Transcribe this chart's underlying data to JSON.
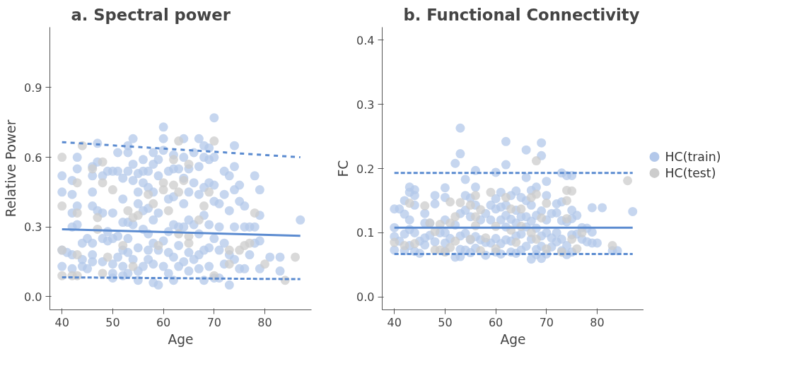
{
  "chart_data": [
    {
      "type": "scatter",
      "title": "a.  Spectral power",
      "xlabel": "Age",
      "ylabel": "Relative Power",
      "xlim": [
        37.6,
        89.2
      ],
      "ylim": [
        -0.057,
        1.16
      ],
      "xticks": [
        40,
        50,
        60,
        70,
        80
      ],
      "yticks": [
        {
          "value": 0,
          "label": "0.0"
        },
        0.3,
        0.6,
        0.9
      ],
      "grid": false,
      "legend": false,
      "marker": "circle",
      "series": [
        {
          "color": "#b3c8ea",
          "x": [
            40,
            40,
            40,
            40,
            41,
            42,
            42,
            42,
            42,
            42,
            42,
            43,
            43,
            43,
            43,
            44,
            44,
            44,
            45,
            45,
            46,
            46,
            46,
            46,
            46,
            46,
            46,
            47,
            47,
            47,
            48,
            48,
            48,
            48,
            49,
            49,
            49,
            50,
            50,
            50,
            50,
            50,
            50,
            51,
            51,
            51,
            51,
            52,
            52,
            52,
            52,
            52,
            52,
            53,
            53,
            53,
            53,
            53,
            53,
            53,
            54,
            54,
            54,
            54,
            54,
            55,
            55,
            55,
            55,
            55,
            55,
            56,
            56,
            56,
            56,
            56,
            56,
            57,
            57,
            57,
            57,
            57,
            57,
            58,
            58,
            58,
            58,
            58,
            58,
            58,
            59,
            59,
            59,
            59,
            59,
            60,
            60,
            60,
            60,
            60,
            61,
            61,
            61,
            61,
            61,
            62,
            62,
            62,
            62,
            62,
            62,
            63,
            63,
            63,
            63,
            64,
            64,
            64,
            64,
            64,
            64,
            65,
            65,
            65,
            65,
            65,
            66,
            66,
            66,
            66,
            67,
            67,
            67,
            67,
            67,
            67,
            68,
            68,
            68,
            68,
            68,
            68,
            69,
            69,
            69,
            69,
            69,
            69,
            70,
            70,
            70,
            70,
            70,
            70,
            71,
            71,
            71,
            71,
            72,
            72,
            72,
            72,
            73,
            73,
            73,
            73,
            74,
            74,
            74,
            74,
            74,
            75,
            75,
            75,
            76,
            76,
            76,
            77,
            77,
            78,
            78,
            78,
            79,
            79,
            79,
            79,
            81,
            83,
            83,
            87
          ],
          "values": [
            0.52,
            0.45,
            0.2,
            0.13,
            0.19,
            0.5,
            0.44,
            0.3,
            0.36,
            0.18,
            0.12,
            0.6,
            0.55,
            0.39,
            0.31,
            0.23,
            0.13,
            0.16,
            0.25,
            0.12,
            0.56,
            0.52,
            0.45,
            0.39,
            0.23,
            0.15,
            0.18,
            0.66,
            0.58,
            0.37,
            0.52,
            0.36,
            0.25,
            0.15,
            0.54,
            0.24,
            0.28,
            0.54,
            0.36,
            0.25,
            0.14,
            0.1,
            0.08,
            0.62,
            0.54,
            0.26,
            0.17,
            0.51,
            0.42,
            0.32,
            0.2,
            0.13,
            0.09,
            0.65,
            0.62,
            0.54,
            0.32,
            0.25,
            0.19,
            0.1,
            0.68,
            0.57,
            0.5,
            0.31,
            0.16,
            0.53,
            0.45,
            0.4,
            0.21,
            0.11,
            0.07,
            0.59,
            0.54,
            0.49,
            0.37,
            0.29,
            0.13,
            0.54,
            0.47,
            0.38,
            0.27,
            0.2,
            0.16,
            0.62,
            0.57,
            0.45,
            0.33,
            0.23,
            0.14,
            0.06,
            0.59,
            0.52,
            0.36,
            0.2,
            0.05,
            0.73,
            0.68,
            0.63,
            0.24,
            0.13,
            0.54,
            0.42,
            0.28,
            0.19,
            0.1,
            0.61,
            0.55,
            0.43,
            0.31,
            0.17,
            0.07,
            0.55,
            0.3,
            0.22,
            0.13,
            0.68,
            0.6,
            0.51,
            0.4,
            0.3,
            0.15,
            0.55,
            0.45,
            0.33,
            0.19,
            0.11,
            0.62,
            0.49,
            0.31,
            0.16,
            0.68,
            0.56,
            0.44,
            0.27,
            0.18,
            0.12,
            0.65,
            0.6,
            0.47,
            0.35,
            0.2,
            0.07,
            0.64,
            0.59,
            0.49,
            0.31,
            0.21,
            0.13,
            0.77,
            0.6,
            0.48,
            0.41,
            0.25,
            0.08,
            0.4,
            0.3,
            0.2,
            0.08,
            0.54,
            0.44,
            0.23,
            0.14,
            0.52,
            0.37,
            0.18,
            0.05,
            0.65,
            0.56,
            0.46,
            0.3,
            0.16,
            0.48,
            0.41,
            0.12,
            0.39,
            0.3,
            0.12,
            0.3,
            0.18,
            0.52,
            0.3,
            0.23,
            0.46,
            0.35,
            0.24,
            0.12,
            0.17,
            0.17,
            0.11,
            0.33
          ]
        },
        {
          "color": "#cccccc",
          "x": [
            40,
            40,
            40,
            40,
            42,
            43,
            43,
            43,
            43,
            44,
            46,
            47,
            47,
            48,
            48,
            48,
            49,
            50,
            52,
            53,
            54,
            54,
            55,
            57,
            58,
            59,
            60,
            60,
            61,
            62,
            62,
            63,
            63,
            63,
            64,
            65,
            65,
            65,
            67,
            68,
            69,
            70,
            70,
            73,
            73,
            75,
            76,
            77,
            78,
            80,
            84,
            86
          ],
          "values": [
            0.6,
            0.39,
            0.2,
            0.09,
            0.09,
            0.49,
            0.36,
            0.18,
            0.09,
            0.65,
            0.55,
            0.34,
            0.29,
            0.58,
            0.49,
            0.1,
            0.17,
            0.46,
            0.22,
            0.37,
            0.34,
            0.13,
            0.35,
            0.44,
            0.4,
            0.22,
            0.49,
            0.46,
            0.37,
            0.59,
            0.48,
            0.67,
            0.45,
            0.27,
            0.5,
            0.57,
            0.26,
            0.23,
            0.33,
            0.39,
            0.45,
            0.67,
            0.09,
            0.2,
            0.14,
            0.2,
            0.22,
            0.23,
            0.36,
            0.14,
            0.07,
            0.17
          ]
        },
        {
          "type": "line",
          "color": "#5b8bd0",
          "line_style": "solid",
          "marker": "none",
          "x": [
            40,
            87
          ],
          "values": [
            0.29,
            0.262
          ]
        },
        {
          "type": "line",
          "color": "#5b8bd0",
          "line_style": "dashed",
          "marker": "none",
          "x": [
            40,
            87
          ],
          "values": [
            0.665,
            0.6
          ]
        },
        {
          "type": "line",
          "color": "#5b8bd0",
          "line_style": "dashed",
          "marker": "none",
          "x": [
            40,
            87
          ],
          "values": [
            0.083,
            0.075
          ]
        }
      ]
    },
    {
      "type": "scatter",
      "title": "b.  Functional Connectivity",
      "xlabel": "Age",
      "ylabel": "FC",
      "xlim": [
        37.6,
        89.2
      ],
      "ylim": [
        -0.02,
        0.42
      ],
      "xticks": [
        40,
        50,
        60,
        70,
        80
      ],
      "yticks": [
        {
          "value": 0,
          "label": "0.0"
        },
        0.1,
        0.2,
        0.3,
        0.4
      ],
      "grid": false,
      "legend": "right",
      "marker": "circle",
      "series": [
        {
          "name": "HC(train)",
          "color": "#b3c8ea",
          "x": [
            40,
            40,
            40,
            40,
            41,
            41,
            42,
            42,
            42,
            42,
            43,
            43,
            43,
            43,
            43,
            44,
            44,
            44,
            44,
            44,
            45,
            45,
            46,
            46,
            46,
            46,
            47,
            47,
            48,
            48,
            48,
            49,
            50,
            50,
            50,
            50,
            50,
            50,
            51,
            52,
            52,
            52,
            53,
            53,
            53,
            53,
            53,
            53,
            54,
            54,
            54,
            54,
            54,
            55,
            55,
            55,
            55,
            56,
            56,
            56,
            56,
            56,
            57,
            57,
            58,
            58,
            58,
            59,
            59,
            59,
            60,
            60,
            60,
            60,
            60,
            61,
            61,
            61,
            61,
            61,
            62,
            62,
            62,
            62,
            62,
            62,
            63,
            63,
            63,
            63,
            64,
            64,
            64,
            64,
            64,
            65,
            65,
            65,
            65,
            66,
            66,
            66,
            66,
            66,
            66,
            67,
            67,
            67,
            67,
            67,
            68,
            68,
            68,
            68,
            68,
            69,
            69,
            69,
            69,
            69,
            69,
            70,
            70,
            70,
            70,
            70,
            71,
            71,
            71,
            72,
            72,
            72,
            72,
            73,
            73,
            73,
            73,
            73,
            74,
            74,
            74,
            74,
            75,
            75,
            75,
            75,
            75,
            76,
            76,
            77,
            77,
            78,
            78,
            79,
            79,
            79,
            80,
            81,
            83,
            84,
            87
          ],
          "values": [
            0.137,
            0.108,
            0.094,
            0.073,
            0.137,
            0.087,
            0.15,
            0.129,
            0.098,
            0.072,
            0.171,
            0.163,
            0.12,
            0.105,
            0.08,
            0.167,
            0.158,
            0.143,
            0.1,
            0.071,
            0.087,
            0.068,
            0.13,
            0.115,
            0.092,
            0.081,
            0.115,
            0.096,
            0.158,
            0.145,
            0.086,
            0.1,
            0.17,
            0.155,
            0.12,
            0.1,
            0.084,
            0.071,
            0.091,
            0.208,
            0.112,
            0.062,
            0.263,
            0.223,
            0.13,
            0.095,
            0.074,
            0.063,
            0.183,
            0.158,
            0.135,
            0.099,
            0.073,
            0.154,
            0.125,
            0.089,
            0.069,
            0.197,
            0.171,
            0.143,
            0.094,
            0.076,
            0.12,
            0.089,
            0.13,
            0.085,
            0.065,
            0.143,
            0.12,
            0.084,
            0.194,
            0.153,
            0.137,
            0.091,
            0.07,
            0.163,
            0.14,
            0.12,
            0.083,
            0.067,
            0.242,
            0.206,
            0.143,
            0.127,
            0.109,
            0.089,
            0.158,
            0.121,
            0.087,
            0.07,
            0.165,
            0.135,
            0.115,
            0.095,
            0.068,
            0.155,
            0.125,
            0.098,
            0.073,
            0.229,
            0.186,
            0.15,
            0.125,
            0.109,
            0.079,
            0.166,
            0.143,
            0.118,
            0.09,
            0.059,
            0.171,
            0.127,
            0.107,
            0.074,
            0.066,
            0.24,
            0.22,
            0.134,
            0.095,
            0.079,
            0.06,
            0.18,
            0.158,
            0.12,
            0.1,
            0.067,
            0.13,
            0.092,
            0.078,
            0.145,
            0.131,
            0.1,
            0.086,
            0.193,
            0.148,
            0.119,
            0.09,
            0.072,
            0.189,
            0.117,
            0.08,
            0.066,
            0.189,
            0.135,
            0.122,
            0.097,
            0.07,
            0.127,
            0.098,
            0.108,
            0.09,
            0.107,
            0.086,
            0.139,
            0.101,
            0.084,
            0.084,
            0.139,
            0.072,
            0.072,
            0.133
          ]
        },
        {
          "name": "HC(test)",
          "color": "#cccccc",
          "x": [
            40,
            42,
            43,
            44,
            46,
            47,
            48,
            48,
            49,
            49,
            50,
            51,
            51,
            51,
            52,
            52,
            53,
            55,
            55,
            56,
            56,
            56,
            57,
            57,
            58,
            59,
            60,
            60,
            62,
            63,
            63,
            64,
            65,
            65,
            67,
            67,
            68,
            68,
            68,
            69,
            70,
            70,
            73,
            74,
            74,
            74,
            75,
            75,
            76,
            77,
            83,
            86
          ],
          "values": [
            0.085,
            0.08,
            0.146,
            0.083,
            0.142,
            0.115,
            0.102,
            0.073,
            0.113,
            0.073,
            0.07,
            0.148,
            0.115,
            0.077,
            0.125,
            0.087,
            0.147,
            0.09,
            0.143,
            0.158,
            0.125,
            0.111,
            0.136,
            0.072,
            0.092,
            0.163,
            0.11,
            0.075,
            0.155,
            0.137,
            0.104,
            0.085,
            0.137,
            0.11,
            0.155,
            0.1,
            0.212,
            0.16,
            0.09,
            0.123,
            0.146,
            0.075,
            0.07,
            0.166,
            0.15,
            0.122,
            0.165,
            0.09,
            0.075,
            0.1,
            0.08,
            0.181
          ]
        },
        {
          "type": "line",
          "color": "#5b8bd0",
          "line_style": "solid",
          "marker": "none",
          "x": [
            40,
            87
          ],
          "values": [
            0.108,
            0.108
          ]
        },
        {
          "type": "line",
          "color": "#5b8bd0",
          "line_style": "dashed",
          "marker": "none",
          "x": [
            40,
            87
          ],
          "values": [
            0.193,
            0.193
          ]
        },
        {
          "type": "line",
          "color": "#5b8bd0",
          "line_style": "dashed",
          "marker": "none",
          "x": [
            40,
            87
          ],
          "values": [
            0.067,
            0.067
          ]
        }
      ]
    }
  ]
}
